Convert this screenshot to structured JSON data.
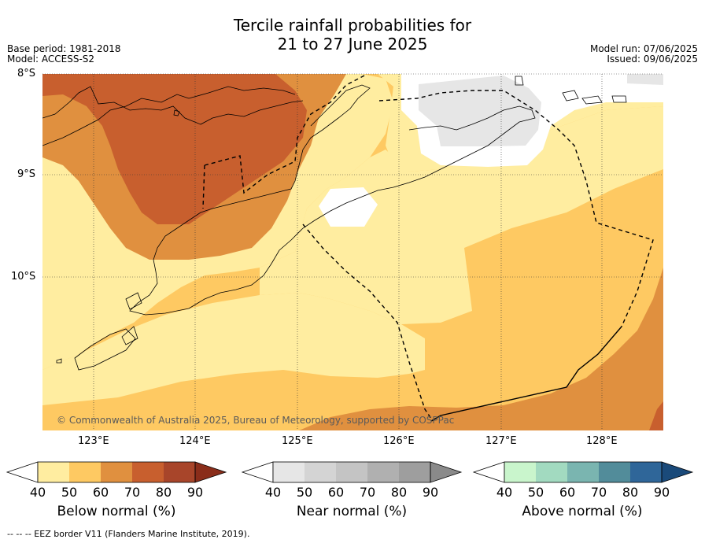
{
  "header": {
    "title_line1": "Tercile rainfall probabilities for",
    "title_line2": "21 to 27 June 2025",
    "base_period": "Base period: 1981-2018",
    "model": "Model: ACCESS-S2",
    "model_run": "Model run: 07/06/2025",
    "issued": "Issued: 09/06/2025"
  },
  "map": {
    "lat_labels": [
      "8°S",
      "9°S",
      "10°S"
    ],
    "lon_labels": [
      "123°E",
      "124°E",
      "125°E",
      "126°E",
      "127°E",
      "128°E"
    ],
    "copyright": "© Commonwealth of Australia 2025, Bureau of Meteorology, supported by COSPPac"
  },
  "legends": [
    {
      "title": "Below normal (%)",
      "ticks": [
        "40",
        "50",
        "60",
        "70",
        "80",
        "90"
      ],
      "colors": [
        "#ffffff",
        "#ffeda0",
        "#fec962",
        "#e0903f",
        "#c85f2e",
        "#a8452a",
        "#8a2d1a"
      ]
    },
    {
      "title": "Near normal (%)",
      "ticks": [
        "40",
        "50",
        "60",
        "70",
        "80",
        "90"
      ],
      "colors": [
        "#ffffff",
        "#e6e6e6",
        "#d4d4d4",
        "#c4c4c4",
        "#b0b0b0",
        "#9e9e9e",
        "#8a8a8a"
      ]
    },
    {
      "title": "Above normal (%)",
      "ticks": [
        "40",
        "50",
        "60",
        "70",
        "80",
        "90"
      ],
      "colors": [
        "#ffffff",
        "#c9f5cc",
        "#a2dac0",
        "#7ab5b0",
        "#528c9a",
        "#2f6699",
        "#1a4a7a"
      ]
    }
  ],
  "footer": "--  --  -- EEZ border V11 (Flanders Marine Institute, 2019)."
}
